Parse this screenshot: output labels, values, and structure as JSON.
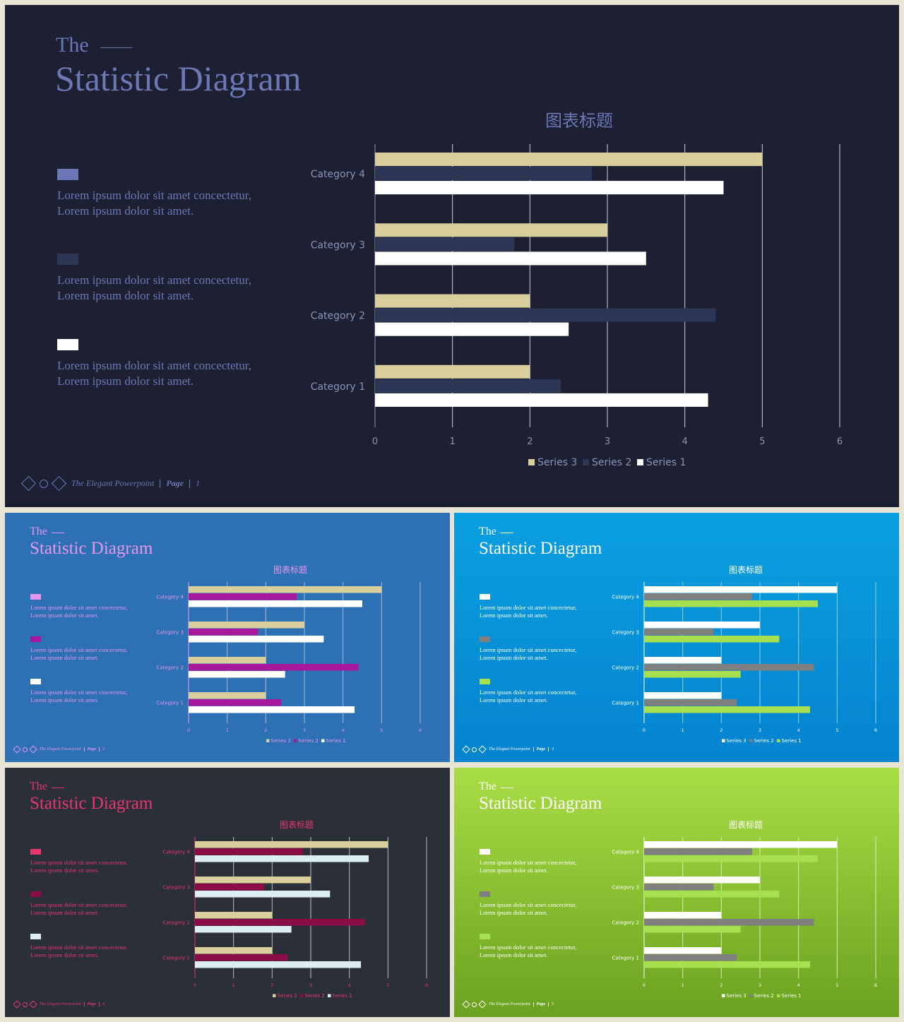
{
  "slides": [
    {
      "title_small": "The",
      "title_main": "Statistic Diagram",
      "chart_title": "图表标题",
      "footer_brand": "The Elegant Powerpoint",
      "footer_page_label": "Page",
      "footer_page_num": "1",
      "descriptions": [
        {
          "line1": "Lorem ipsum dolor sit amet concectetur,",
          "line2": "Lorem ipsum dolor sit amet."
        },
        {
          "line1": "Lorem ipsum dolor sit amet concectetur,",
          "line2": "Lorem ipsum dolor sit amet."
        },
        {
          "line1": "Lorem ipsum dolor sit amet concectetur,",
          "line2": "Lorem ipsum dolor sit amet."
        }
      ],
      "colors": {
        "bg": "#1c2032",
        "title": "#6b78b5",
        "text": "#6b78b5",
        "axis": "#8a93b8",
        "grid": "#d0d3dc",
        "line": "#6b78b5",
        "legend_blocks": [
          "#6b78b5",
          "#2e3656",
          "#ffffff"
        ],
        "series3": "#d9cf9c",
        "series2": "#2e3656",
        "series1": "#ffffff"
      }
    },
    {
      "title_small": "The",
      "title_main": "Statistic Diagram",
      "chart_title": "图表标题",
      "footer_brand": "The Elegant Powerpoint",
      "footer_page_label": "Page",
      "footer_page_num": "2",
      "descriptions": [
        {
          "line1": "Lorem ipsum dolor sit amet concectetur,",
          "line2": "Lorem ipsum dolor sit amet."
        },
        {
          "line1": "Lorem ipsum dolor sit amet concectetur,",
          "line2": "Lorem ipsum dolor sit amet."
        },
        {
          "line1": "Lorem ipsum dolor sit amet concectetur,",
          "line2": "Lorem ipsum dolor sit amet."
        }
      ],
      "colors": {
        "bg": "#2e70b4",
        "title": "#e597ee",
        "text": "#e597ee",
        "axis": "#e597ee",
        "grid": "#9fbde0",
        "line": "#e597ee",
        "legend_blocks": [
          "#e597ee",
          "#a8189c",
          "#ffffff"
        ],
        "series3": "#d9cf9c",
        "series2": "#a8189c",
        "series1": "#ffffff"
      }
    },
    {
      "title_small": "The",
      "title_main": "Statistic Diagram",
      "chart_title": "图表标题",
      "footer_brand": "The Elegant Powerpoint",
      "footer_page_label": "Page",
      "footer_page_num": "3",
      "descriptions": [
        {
          "line1": "Lorem ipsum dolor sit amet concectetur,",
          "line2": "Lorem ipsum dolor sit amet."
        },
        {
          "line1": "Lorem ipsum dolor sit amet concectetur,",
          "line2": "Lorem ipsum dolor sit amet."
        },
        {
          "line1": "Lorem ipsum dolor sit amet concectetur,",
          "line2": "Lorem ipsum dolor sit amet."
        }
      ],
      "colors": {
        "bg": "#0aa0e0",
        "bg2": "#0683cf",
        "title": "#ffffff",
        "text": "#ffffff",
        "axis": "#ffffff",
        "grid": "#8fd3f3",
        "line": "#ffffff",
        "legend_blocks": [
          "#ffffff",
          "#7f7f7f",
          "#a6e04f"
        ],
        "series3": "#ffffff",
        "series2": "#7f7f7f",
        "series1": "#a6e04f"
      }
    },
    {
      "title_small": "The",
      "title_main": "Statistic Diagram",
      "chart_title": "图表标题",
      "footer_brand": "The Elegant Powerpoint",
      "footer_page_label": "Page",
      "footer_page_num": "4",
      "descriptions": [
        {
          "line1": "Lorem ipsum dolor sit amet concectetur,",
          "line2": "Lorem ipsum dolor sit amet."
        },
        {
          "line1": "Lorem ipsum dolor sit amet concectetur,",
          "line2": "Lorem ipsum dolor sit amet."
        },
        {
          "line1": "Lorem ipsum dolor sit amet concectetur,",
          "line2": "Lorem ipsum dolor sit amet."
        }
      ],
      "colors": {
        "bg": "#2b2f38",
        "title": "#e8376f",
        "text": "#e8376f",
        "axis": "#e8376f",
        "grid": "#b8bcc4",
        "line": "#e8376f",
        "legend_blocks": [
          "#e8376f",
          "#8b0d47",
          "#ddeef2"
        ],
        "series3": "#d9cf9c",
        "series2": "#8b0d47",
        "series1": "#ddeef2"
      }
    },
    {
      "title_small": "The",
      "title_main": "Statistic Diagram",
      "chart_title": "图表标题",
      "footer_brand": "The Elegant Powerpoint",
      "footer_page_label": "Page",
      "footer_page_num": "5",
      "descriptions": [
        {
          "line1": "Lorem ipsum dolor sit amet concectetur,",
          "line2": "Lorem ipsum dolor sit amet."
        },
        {
          "line1": "Lorem ipsum dolor sit amet concectetur,",
          "line2": "Lorem ipsum dolor sit amet."
        },
        {
          "line1": "Lorem ipsum dolor sit amet concectetur,",
          "line2": "Lorem ipsum dolor sit amet."
        }
      ],
      "colors": {
        "bg": "#a9dd45",
        "bg2": "#6aa11f",
        "title": "#ffffff",
        "text": "#ffffff",
        "axis": "#ffffff",
        "grid": "#d7efa8",
        "line": "#ffffff",
        "legend_blocks": [
          "#ffffff",
          "#7f7f7f",
          "#a6e04f"
        ],
        "series3": "#ffffff",
        "series2": "#7f7f7f",
        "series1": "#a6e04f"
      }
    }
  ],
  "chart_data": {
    "type": "bar",
    "orientation": "horizontal",
    "categories": [
      "Category 1",
      "Category 2",
      "Category 3",
      "Category 4"
    ],
    "series": [
      {
        "name": "Series 3",
        "values": [
          2,
          2,
          3,
          5
        ]
      },
      {
        "name": "Series 2",
        "values": [
          2.4,
          4.4,
          1.8,
          2.8
        ]
      },
      {
        "name": "Series 1",
        "values": [
          4.3,
          2.5,
          3.5,
          4.5
        ]
      }
    ],
    "xlim": [
      0,
      6
    ],
    "xticks": [
      "0",
      "1",
      "2",
      "3",
      "4",
      "5",
      "6"
    ],
    "grid": true,
    "legend": "bottom"
  }
}
